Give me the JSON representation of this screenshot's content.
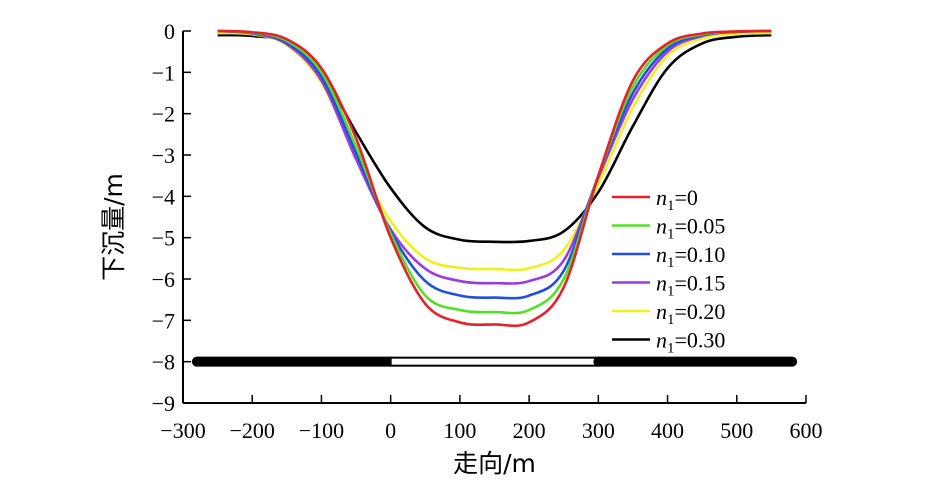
{
  "chart_data": {
    "type": "line",
    "title": "",
    "xlabel": "走向/m",
    "ylabel": "下沉量/m",
    "xlim": [
      -300,
      600
    ],
    "ylim": [
      -9,
      0
    ],
    "x_ticks": [
      -300,
      -200,
      -100,
      0,
      100,
      200,
      300,
      400,
      500,
      600
    ],
    "y_ticks": [
      0,
      -1,
      -2,
      -3,
      -4,
      -5,
      -6,
      -7,
      -8,
      -9
    ],
    "x_tick_labels": [
      "−300",
      "−200",
      "−100",
      "0",
      "100",
      "200",
      "300",
      "400",
      "500",
      "600"
    ],
    "y_tick_labels": [
      "0",
      "−1",
      "−2",
      "−3",
      "−4",
      "−5",
      "−6",
      "−7",
      "−8",
      "−9"
    ],
    "grid": false,
    "legend_position": "right",
    "x": [
      -250,
      -200,
      -150,
      -100,
      -50,
      0,
      50,
      100,
      150,
      200,
      250,
      300,
      350,
      400,
      450,
      500,
      550
    ],
    "series": [
      {
        "name": "n1=0",
        "legend_var": "n",
        "legend_sub": "1",
        "legend_val": "=0",
        "color": "#e8202a",
        "values": [
          0,
          -0.03,
          -0.2,
          -0.9,
          -2.6,
          -5.0,
          -6.6,
          -7.05,
          -7.1,
          -7.05,
          -6.2,
          -3.5,
          -1.2,
          -0.3,
          -0.06,
          -0.01,
          0
        ]
      },
      {
        "name": "n1=0.05",
        "legend_var": "n",
        "legend_sub": "1",
        "legend_val": "=0.05",
        "color": "#52e024",
        "values": [
          0,
          -0.04,
          -0.24,
          -1.0,
          -2.8,
          -4.9,
          -6.4,
          -6.75,
          -6.8,
          -6.75,
          -6.0,
          -3.5,
          -1.35,
          -0.35,
          -0.08,
          -0.01,
          0
        ]
      },
      {
        "name": "n1=0.10",
        "legend_var": "n",
        "legend_sub": "1",
        "legend_val": "=0.10",
        "color": "#1f4fe0",
        "values": [
          0,
          -0.05,
          -0.28,
          -1.1,
          -2.95,
          -4.85,
          -6.05,
          -6.4,
          -6.45,
          -6.4,
          -5.8,
          -3.5,
          -1.5,
          -0.42,
          -0.1,
          -0.02,
          0
        ]
      },
      {
        "name": "n1=0.15",
        "legend_var": "n",
        "legend_sub": "1",
        "legend_val": "=0.15",
        "color": "#9a3be0",
        "values": [
          0,
          -0.06,
          -0.32,
          -1.2,
          -3.1,
          -4.8,
          -5.75,
          -6.05,
          -6.1,
          -6.05,
          -5.55,
          -3.55,
          -1.65,
          -0.5,
          -0.12,
          -0.02,
          0
        ]
      },
      {
        "name": "n1=0.20",
        "legend_var": "n",
        "legend_sub": "1",
        "legend_val": "=0.20",
        "color": "#f0f020",
        "values": [
          -0.05,
          -0.08,
          -0.34,
          -1.25,
          -3.05,
          -4.6,
          -5.5,
          -5.73,
          -5.76,
          -5.74,
          -5.3,
          -3.7,
          -1.85,
          -0.6,
          -0.18,
          -0.07,
          -0.05
        ]
      },
      {
        "name": "n1=0.30",
        "legend_var": "n",
        "legend_sub": "1",
        "legend_val": "=0.30",
        "color": "#000000",
        "values": [
          -0.1,
          -0.12,
          -0.28,
          -1.0,
          -2.45,
          -3.8,
          -4.75,
          -5.05,
          -5.1,
          -5.08,
          -4.85,
          -3.9,
          -2.3,
          -0.9,
          -0.3,
          -0.14,
          -0.1
        ]
      }
    ],
    "seam_bar": {
      "y": -8,
      "segments": [
        {
          "x": [
            -280,
            0
          ],
          "style": "thick"
        },
        {
          "x": [
            0,
            300
          ],
          "style": "hollow"
        },
        {
          "x": [
            300,
            580
          ],
          "style": "thick"
        }
      ]
    }
  }
}
